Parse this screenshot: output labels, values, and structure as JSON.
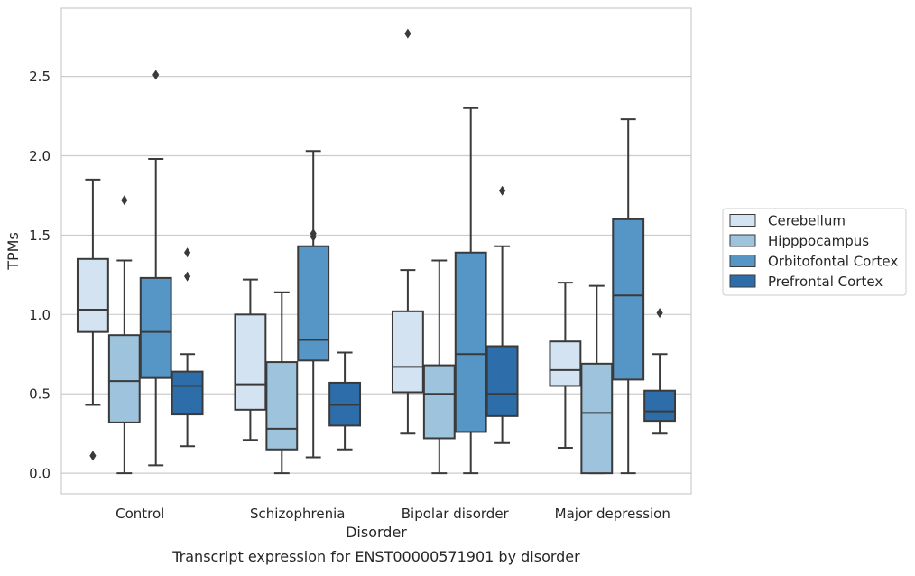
{
  "chart_data": {
    "type": "box",
    "title": "",
    "caption": "Transcript expression for ENST00000571901 by disorder",
    "xlabel": "Disorder",
    "ylabel": "TPMs",
    "ylim": [
      -0.13,
      2.93
    ],
    "yticks": [
      0.0,
      0.5,
      1.0,
      1.5,
      2.0,
      2.5
    ],
    "ytick_labels": [
      "0.0",
      "0.5",
      "1.0",
      "1.5",
      "2.0",
      "2.5"
    ],
    "grid": "horizontal",
    "legend_position": "right",
    "categories": [
      "Control",
      "Schizophrenia",
      "Bipolar disorder",
      "Major depression"
    ],
    "series": [
      {
        "name": "Cerebellum",
        "color": "#d3e3f2",
        "boxes": [
          {
            "whisker_low": 0.43,
            "q1": 0.89,
            "median": 1.03,
            "q3": 1.35,
            "whisker_high": 1.85,
            "outliers": [
              0.11
            ]
          },
          {
            "whisker_low": 0.21,
            "q1": 0.4,
            "median": 0.56,
            "q3": 1.0,
            "whisker_high": 1.22,
            "outliers": []
          },
          {
            "whisker_low": 0.25,
            "q1": 0.51,
            "median": 0.67,
            "q3": 1.02,
            "whisker_high": 1.28,
            "outliers": [
              2.77
            ]
          },
          {
            "whisker_low": 0.16,
            "q1": 0.55,
            "median": 0.65,
            "q3": 0.83,
            "whisker_high": 1.2,
            "outliers": []
          }
        ]
      },
      {
        "name": "Hipppocampus",
        "color": "#9dc3dd",
        "boxes": [
          {
            "whisker_low": 0.0,
            "q1": 0.32,
            "median": 0.58,
            "q3": 0.87,
            "whisker_high": 1.34,
            "outliers": [
              1.72
            ]
          },
          {
            "whisker_low": 0.0,
            "q1": 0.15,
            "median": 0.28,
            "q3": 0.7,
            "whisker_high": 1.14,
            "outliers": []
          },
          {
            "whisker_low": 0.0,
            "q1": 0.22,
            "median": 0.5,
            "q3": 0.68,
            "whisker_high": 1.34,
            "outliers": []
          },
          {
            "whisker_low": 0.0,
            "q1": 0.0,
            "median": 0.38,
            "q3": 0.69,
            "whisker_high": 1.18,
            "outliers": []
          }
        ]
      },
      {
        "name": "Orbitofontal Cortex",
        "color": "#5596c6",
        "boxes": [
          {
            "whisker_low": 0.05,
            "q1": 0.6,
            "median": 0.89,
            "q3": 1.23,
            "whisker_high": 1.98,
            "outliers": [
              2.51
            ]
          },
          {
            "whisker_low": 0.1,
            "q1": 0.71,
            "median": 0.84,
            "q3": 1.43,
            "whisker_high": 2.03,
            "outliers": [
              1.49,
              1.51
            ]
          },
          {
            "whisker_low": 0.0,
            "q1": 0.26,
            "median": 0.75,
            "q3": 1.39,
            "whisker_high": 2.3,
            "outliers": []
          },
          {
            "whisker_low": 0.0,
            "q1": 0.59,
            "median": 1.12,
            "q3": 1.6,
            "whisker_high": 2.23,
            "outliers": []
          }
        ]
      },
      {
        "name": "Prefrontal Cortex",
        "color": "#2d6eaa",
        "boxes": [
          {
            "whisker_low": 0.17,
            "q1": 0.37,
            "median": 0.55,
            "q3": 0.64,
            "whisker_high": 0.75,
            "outliers": [
              1.24,
              1.39
            ]
          },
          {
            "whisker_low": 0.15,
            "q1": 0.3,
            "median": 0.43,
            "q3": 0.57,
            "whisker_high": 0.76,
            "outliers": []
          },
          {
            "whisker_low": 0.19,
            "q1": 0.36,
            "median": 0.5,
            "q3": 0.8,
            "whisker_high": 1.43,
            "outliers": [
              1.78
            ]
          },
          {
            "whisker_low": 0.25,
            "q1": 0.33,
            "median": 0.39,
            "q3": 0.52,
            "whisker_high": 0.75,
            "outliers": [
              1.01
            ]
          }
        ]
      }
    ]
  }
}
